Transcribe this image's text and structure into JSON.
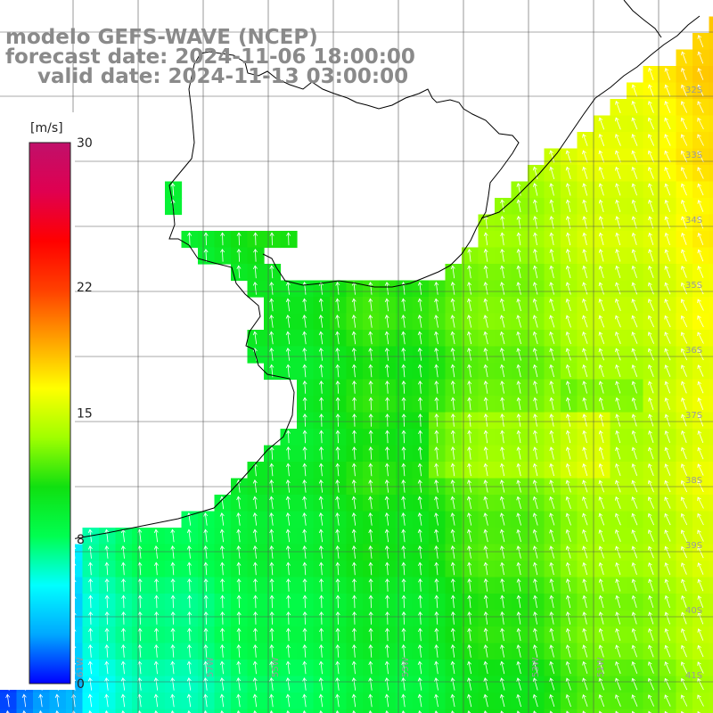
{
  "header": {
    "line1": "modelo GEFS-WAVE (NCEP)",
    "line2": "forecast date: 2024-11-06 18:00:00",
    "line3": "valid date: 2024-11-13 03:00:00"
  },
  "colorbar": {
    "unit": "[m/s]",
    "range": [
      0,
      30
    ],
    "ticks": [
      {
        "label": "30",
        "value": 30
      },
      {
        "label": "22",
        "value": 22
      },
      {
        "label": "15",
        "value": 15
      },
      {
        "label": "8",
        "value": 8
      },
      {
        "label": "0",
        "value": 0
      }
    ],
    "stops": [
      "#0000ff",
      "#00a8ff",
      "#00ffff",
      "#00ff50",
      "#10e010",
      "#a0ff00",
      "#ffff00",
      "#ffa000",
      "#ff4000",
      "#ff0000",
      "#e00050",
      "#c0106a"
    ]
  },
  "map": {
    "lat_labels": [
      "32S",
      "33S",
      "34S",
      "35S",
      "36S",
      "37S",
      "38S",
      "39S",
      "40S",
      "41S"
    ],
    "lon_labels": [
      "61W",
      "59W",
      "57W",
      "55W",
      "53W",
      "51W"
    ]
  },
  "colors": {
    "land": "#ffffff",
    "coast": "#000000",
    "grid": "#555555",
    "label": "#8a8a8a"
  }
}
